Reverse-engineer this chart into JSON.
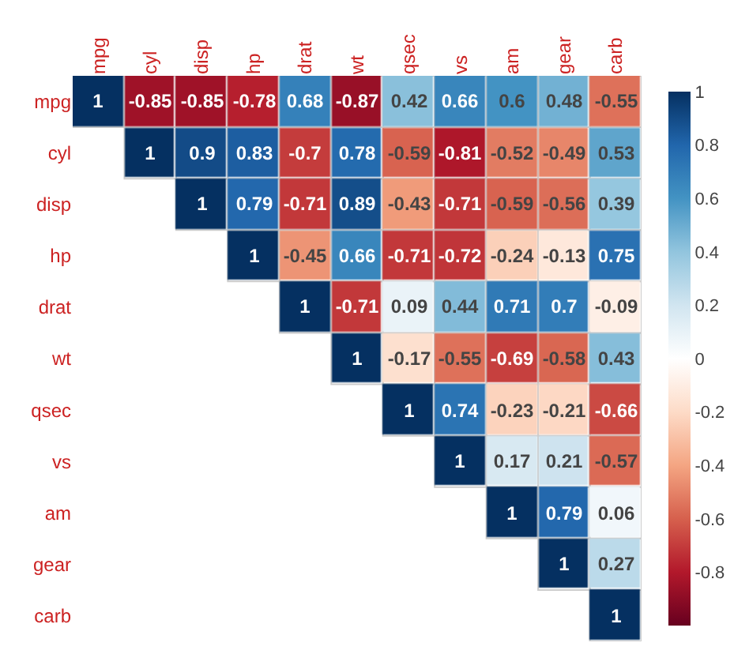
{
  "chart_data": {
    "type": "heatmap",
    "categories": [
      "mpg",
      "cyl",
      "disp",
      "hp",
      "drat",
      "wt",
      "qsec",
      "vs",
      "am",
      "gear",
      "carb"
    ],
    "y_categories": [
      "mpg",
      "cyl",
      "disp",
      "hp",
      "drat",
      "wt",
      "qsec",
      "vs",
      "am",
      "gear",
      "carb"
    ],
    "cells": [
      [
        1,
        -0.85,
        -0.85,
        -0.78,
        0.68,
        -0.87,
        0.42,
        0.66,
        0.6,
        0.48,
        -0.55
      ],
      [
        null,
        1,
        0.9,
        0.83,
        -0.7,
        0.78,
        -0.59,
        -0.81,
        -0.52,
        -0.49,
        0.53
      ],
      [
        null,
        null,
        1,
        0.79,
        -0.71,
        0.89,
        -0.43,
        -0.71,
        -0.59,
        -0.56,
        0.39
      ],
      [
        null,
        null,
        null,
        1,
        -0.45,
        0.66,
        -0.71,
        -0.72,
        -0.24,
        -0.13,
        0.75
      ],
      [
        null,
        null,
        null,
        null,
        1,
        -0.71,
        0.09,
        0.44,
        0.71,
        0.7,
        -0.09
      ],
      [
        null,
        null,
        null,
        null,
        null,
        1,
        -0.17,
        -0.55,
        -0.69,
        -0.58,
        0.43
      ],
      [
        null,
        null,
        null,
        null,
        null,
        null,
        1,
        0.74,
        -0.23,
        -0.21,
        -0.66
      ],
      [
        null,
        null,
        null,
        null,
        null,
        null,
        null,
        1,
        0.17,
        0.21,
        -0.57
      ],
      [
        null,
        null,
        null,
        null,
        null,
        null,
        null,
        null,
        1,
        0.79,
        0.06
      ],
      [
        null,
        null,
        null,
        null,
        null,
        null,
        null,
        null,
        null,
        1,
        0.27
      ],
      [
        null,
        null,
        null,
        null,
        null,
        null,
        null,
        null,
        null,
        null,
        1
      ]
    ],
    "data_labels": true,
    "clim": [
      -1,
      1
    ],
    "cticks": [
      -0.8,
      -0.6,
      -0.4,
      -0.2,
      0,
      0.2,
      0.4,
      0.6,
      0.8,
      1
    ]
  }
}
